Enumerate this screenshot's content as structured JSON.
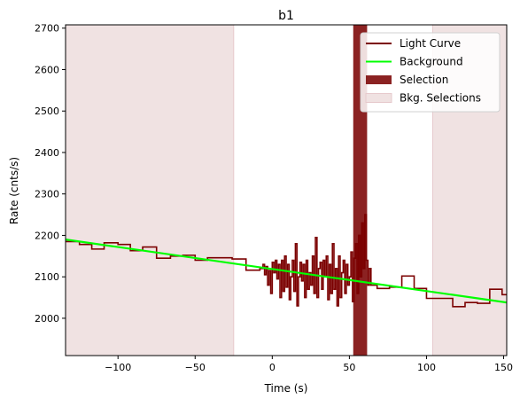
{
  "chart_data": {
    "type": "line",
    "title": "b1",
    "xlabel": "Time (s)",
    "ylabel": "Rate (cnts/s)",
    "xlim": [
      -134,
      152
    ],
    "ylim": [
      1910,
      2708
    ],
    "xticks": [
      -100,
      -50,
      0,
      50,
      100,
      150
    ],
    "xtick_labels": [
      "−100",
      "−50",
      "0",
      "50",
      "100",
      "150"
    ],
    "yticks": [
      2000,
      2100,
      2200,
      2300,
      2400,
      2500,
      2600,
      2700
    ],
    "ytick_labels": [
      "2000",
      "2100",
      "2200",
      "2300",
      "2400",
      "2500",
      "2600",
      "2700"
    ],
    "grid": false,
    "legend_position": "top-right",
    "colors": {
      "light_curve": "#7b0000",
      "background": "#00ff00",
      "selection": "#8b2222",
      "bkg_selection": "#f0e2e2",
      "bkg_selection_edge": "#e6c9cc"
    },
    "legend": [
      {
        "key": "light_curve",
        "label": "Light Curve",
        "style": "line"
      },
      {
        "key": "background",
        "label": "Background",
        "style": "line"
      },
      {
        "key": "selection",
        "label": "Selection",
        "style": "patch"
      },
      {
        "key": "bkg_selection",
        "label": "Bkg. Selections",
        "style": "patch"
      }
    ],
    "series": [
      {
        "name": "Light Curve",
        "step": true,
        "points": [
          [
            -134,
            2185
          ],
          [
            -125,
            2178
          ],
          [
            -117,
            2167
          ],
          [
            -109,
            2182
          ],
          [
            -100,
            2178
          ],
          [
            -92,
            2163
          ],
          [
            -84,
            2172
          ],
          [
            -75,
            2145
          ],
          [
            -66,
            2150
          ],
          [
            -58,
            2152
          ],
          [
            -50,
            2140
          ],
          [
            -42,
            2146
          ],
          [
            -34,
            2146
          ],
          [
            -26,
            2143
          ],
          [
            -17,
            2116
          ],
          [
            -8,
            2120
          ],
          [
            -6,
            2130
          ],
          [
            -5,
            2105
          ],
          [
            -4,
            2125
          ],
          [
            -3,
            2080
          ],
          [
            -2,
            2115
          ],
          [
            -1,
            2060
          ],
          [
            0,
            2135
          ],
          [
            1,
            2110
          ],
          [
            2,
            2140
          ],
          [
            3,
            2095
          ],
          [
            4,
            2130
          ],
          [
            5,
            2050
          ],
          [
            6,
            2140
          ],
          [
            7,
            2065
          ],
          [
            8,
            2150
          ],
          [
            9,
            2075
          ],
          [
            10,
            2130
          ],
          [
            11,
            2045
          ],
          [
            12,
            2100
          ],
          [
            13,
            2140
          ],
          [
            14,
            2065
          ],
          [
            15,
            2180
          ],
          [
            16,
            2030
          ],
          [
            17,
            2100
          ],
          [
            18,
            2135
          ],
          [
            19,
            2090
          ],
          [
            20,
            2130
          ],
          [
            21,
            2050
          ],
          [
            22,
            2140
          ],
          [
            23,
            2070
          ],
          [
            24,
            2110
          ],
          [
            25,
            2080
          ],
          [
            26,
            2150
          ],
          [
            27,
            2060
          ],
          [
            28,
            2195
          ],
          [
            29,
            2050
          ],
          [
            30,
            2120
          ],
          [
            31,
            2135
          ],
          [
            32,
            2070
          ],
          [
            33,
            2140
          ],
          [
            34,
            2100
          ],
          [
            35,
            2150
          ],
          [
            36,
            2045
          ],
          [
            37,
            2130
          ],
          [
            38,
            2060
          ],
          [
            39,
            2180
          ],
          [
            40,
            2070
          ],
          [
            41,
            2120
          ],
          [
            42,
            2030
          ],
          [
            43,
            2150
          ],
          [
            44,
            2050
          ],
          [
            45,
            2110
          ],
          [
            46,
            2140
          ],
          [
            47,
            2060
          ],
          [
            48,
            2130
          ],
          [
            49,
            2080
          ],
          [
            50,
            2100
          ],
          [
            51,
            2160
          ],
          [
            52,
            2040
          ],
          [
            53,
            2145
          ],
          [
            54,
            2180
          ],
          [
            55,
            2060
          ],
          [
            56,
            2200
          ],
          [
            57,
            2100
          ],
          [
            58,
            2230
          ],
          [
            59,
            2120
          ],
          [
            60,
            2250
          ],
          [
            61,
            2140
          ],
          [
            62,
            2080
          ],
          [
            63,
            2120
          ],
          [
            64,
            2080
          ],
          [
            68,
            2072
          ],
          [
            76,
            2075
          ],
          [
            84,
            2102
          ],
          [
            92,
            2072
          ],
          [
            100,
            2048
          ],
          [
            108,
            2048
          ],
          [
            117,
            2028
          ],
          [
            125,
            2038
          ],
          [
            133,
            2036
          ],
          [
            141,
            2070
          ],
          [
            149,
            2057
          ],
          [
            152,
            2057
          ]
        ]
      },
      {
        "name": "Background",
        "points": [
          [
            -134,
            2190
          ],
          [
            152,
            2038
          ]
        ]
      }
    ],
    "selection_regions": [
      [
        52.5,
        61.5
      ]
    ],
    "bkg_selection_regions": [
      [
        -134,
        -25
      ],
      [
        104,
        152
      ]
    ]
  }
}
